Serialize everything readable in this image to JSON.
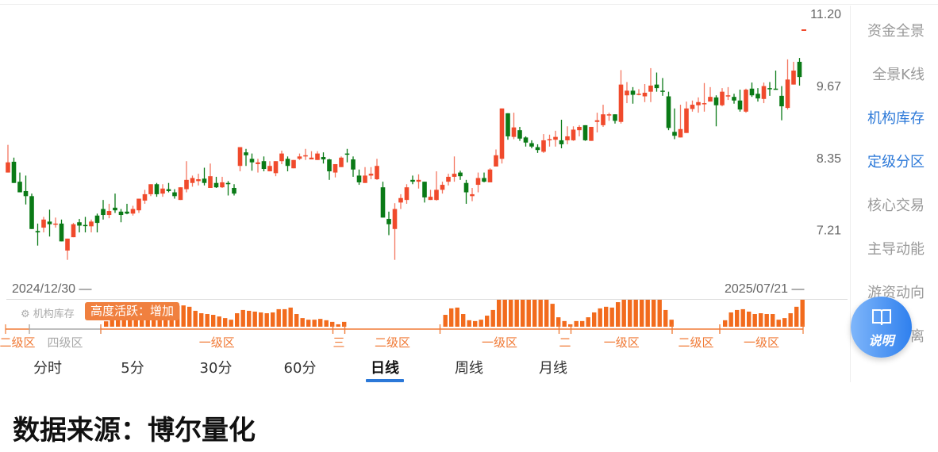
{
  "chart_data": {
    "type": "candlestick",
    "scale": "log",
    "ylim": [
      6.54,
      11.2
    ],
    "yticks": [
      "11.20",
      "9.67",
      "8.35",
      "7.21"
    ],
    "ytick_values": [
      11.2,
      9.67,
      8.35,
      7.21
    ],
    "start_date": "2024/12/30 —",
    "end_date": "2025/07/21 —",
    "colors": {
      "up": "#f04a2c",
      "down": "#0a7a16",
      "activity": "#f26b1d",
      "zone_line": "#f07a36",
      "zone_gray": "#aaaaaa"
    },
    "candles_ohlc": [
      [
        8.1,
        8.57,
        8.1,
        8.27
      ],
      [
        8.28,
        8.35,
        7.93,
        7.93
      ],
      [
        7.95,
        8.1,
        7.78,
        7.78
      ],
      [
        7.8,
        8.05,
        7.59,
        7.72
      ],
      [
        7.72,
        7.76,
        7.22,
        7.22
      ],
      [
        7.19,
        7.3,
        6.98,
        7.17
      ],
      [
        7.24,
        7.4,
        7.17,
        7.36
      ],
      [
        7.33,
        7.51,
        7.11,
        7.29
      ],
      [
        7.29,
        7.39,
        7.24,
        7.3
      ],
      [
        7.3,
        7.36,
        7.04,
        7.04
      ],
      [
        6.91,
        7.08,
        6.78,
        7.08
      ],
      [
        7.1,
        7.31,
        7.1,
        7.29
      ],
      [
        7.32,
        7.37,
        7.17,
        7.27
      ],
      [
        7.28,
        7.4,
        7.17,
        7.27
      ],
      [
        7.26,
        7.36,
        7.17,
        7.33
      ],
      [
        7.42,
        7.45,
        7.17,
        7.31
      ],
      [
        7.52,
        7.66,
        7.36,
        7.43
      ],
      [
        7.43,
        7.6,
        7.38,
        7.49
      ],
      [
        7.54,
        7.76,
        7.46,
        7.5
      ],
      [
        7.48,
        7.52,
        7.32,
        7.43
      ],
      [
        7.48,
        7.6,
        7.44,
        7.45
      ],
      [
        7.45,
        7.57,
        7.42,
        7.52
      ],
      [
        7.5,
        7.68,
        7.46,
        7.68
      ],
      [
        7.65,
        7.82,
        7.6,
        7.75
      ],
      [
        7.75,
        7.91,
        7.72,
        7.91
      ],
      [
        7.91,
        7.93,
        7.71,
        7.75
      ],
      [
        7.76,
        7.91,
        7.71,
        7.84
      ],
      [
        7.83,
        7.93,
        7.78,
        7.8
      ],
      [
        7.78,
        7.83,
        7.68,
        7.72
      ],
      [
        7.66,
        7.86,
        7.66,
        7.86
      ],
      [
        7.83,
        8.29,
        7.78,
        7.98
      ],
      [
        7.93,
        8.05,
        7.87,
        8.01
      ],
      [
        7.96,
        8.08,
        7.89,
        7.99
      ],
      [
        8.0,
        8.18,
        7.89,
        7.93
      ],
      [
        7.85,
        8.25,
        7.85,
        8.04
      ],
      [
        7.93,
        8.03,
        7.85,
        7.86
      ],
      [
        7.86,
        8.03,
        7.85,
        7.94
      ],
      [
        7.93,
        7.96,
        7.73,
        7.91
      ],
      [
        7.85,
        7.91,
        7.73,
        7.76
      ],
      [
        8.21,
        8.53,
        8.12,
        8.53
      ],
      [
        8.44,
        8.5,
        8.21,
        8.39
      ],
      [
        8.33,
        8.42,
        8.13,
        8.27
      ],
      [
        8.24,
        8.33,
        8.1,
        8.27
      ],
      [
        8.29,
        8.37,
        8.12,
        8.16
      ],
      [
        8.12,
        8.29,
        8.12,
        8.21
      ],
      [
        8.09,
        8.29,
        8.04,
        8.29
      ],
      [
        8.29,
        8.47,
        8.24,
        8.42
      ],
      [
        8.33,
        8.37,
        8.12,
        8.21
      ],
      [
        8.17,
        8.31,
        8.17,
        8.31
      ],
      [
        8.33,
        8.42,
        8.31,
        8.37
      ],
      [
        8.37,
        8.5,
        8.31,
        8.39
      ],
      [
        8.32,
        8.46,
        8.32,
        8.35
      ],
      [
        8.31,
        8.46,
        8.31,
        8.42
      ],
      [
        8.36,
        8.44,
        8.25,
        8.32
      ],
      [
        8.32,
        8.33,
        7.98,
        8.12
      ],
      [
        8.1,
        8.24,
        8.02,
        8.24
      ],
      [
        8.19,
        8.37,
        8.19,
        8.35
      ],
      [
        8.42,
        8.5,
        8.27,
        8.4
      ],
      [
        8.32,
        8.37,
        8.03,
        8.15
      ],
      [
        8.05,
        8.15,
        7.9,
        7.94
      ],
      [
        7.93,
        8.19,
        7.93,
        8.05
      ],
      [
        8.05,
        8.19,
        7.99,
        8.08
      ],
      [
        7.99,
        8.33,
        7.98,
        8.21
      ],
      [
        7.86,
        7.95,
        7.39,
        7.39
      ],
      [
        7.37,
        7.48,
        7.13,
        7.29
      ],
      [
        7.22,
        7.61,
        6.78,
        7.52
      ],
      [
        7.62,
        7.75,
        7.52,
        7.69
      ],
      [
        7.66,
        7.91,
        7.6,
        7.86
      ],
      [
        7.98,
        8.05,
        7.91,
        7.95
      ],
      [
        7.95,
        8.07,
        7.84,
        7.98
      ],
      [
        7.95,
        7.95,
        7.62,
        7.7
      ],
      [
        7.66,
        7.82,
        7.66,
        7.71
      ],
      [
        7.66,
        8.12,
        7.65,
        7.82
      ],
      [
        7.82,
        7.95,
        7.76,
        7.9
      ],
      [
        7.95,
        8.08,
        7.89,
        8.03
      ],
      [
        8.03,
        8.37,
        7.95,
        8.08
      ],
      [
        8.1,
        8.13,
        7.98,
        8.04
      ],
      [
        7.93,
        7.98,
        7.6,
        7.78
      ],
      [
        7.72,
        7.85,
        7.64,
        7.75
      ],
      [
        7.9,
        8.1,
        7.78,
        8.01
      ],
      [
        8.01,
        8.1,
        7.94,
        7.95
      ],
      [
        7.94,
        8.17,
        7.94,
        8.15
      ],
      [
        8.2,
        8.49,
        8.2,
        8.39
      ],
      [
        8.33,
        9.23,
        8.25,
        9.23
      ],
      [
        9.14,
        9.14,
        8.66,
        8.72
      ],
      [
        8.71,
        9.15,
        8.67,
        8.88
      ],
      [
        8.83,
        8.89,
        8.64,
        8.68
      ],
      [
        8.7,
        8.72,
        8.54,
        8.61
      ],
      [
        8.6,
        8.65,
        8.51,
        8.54
      ],
      [
        8.53,
        8.58,
        8.43,
        8.48
      ],
      [
        8.45,
        8.76,
        8.43,
        8.65
      ],
      [
        8.65,
        8.75,
        8.54,
        8.67
      ],
      [
        8.66,
        8.82,
        8.54,
        8.71
      ],
      [
        8.65,
        9.02,
        8.51,
        8.58
      ],
      [
        8.65,
        8.9,
        8.58,
        8.72
      ],
      [
        8.65,
        8.9,
        8.64,
        8.84
      ],
      [
        8.83,
        8.92,
        8.72,
        8.89
      ],
      [
        8.92,
        8.92,
        8.64,
        8.65
      ],
      [
        8.64,
        8.89,
        8.64,
        8.89
      ],
      [
        8.98,
        9.15,
        8.79,
        9.01
      ],
      [
        8.92,
        9.3,
        8.89,
        9.12
      ],
      [
        9.11,
        9.15,
        9.0,
        9.12
      ],
      [
        9.12,
        9.12,
        8.95,
        9.0
      ],
      [
        8.98,
        9.98,
        8.95,
        9.69
      ],
      [
        9.48,
        9.74,
        9.33,
        9.57
      ],
      [
        9.57,
        9.64,
        9.32,
        9.49
      ],
      [
        9.49,
        9.6,
        9.48,
        9.51
      ],
      [
        9.46,
        9.7,
        9.35,
        9.53
      ],
      [
        9.55,
        10.02,
        9.35,
        9.67
      ],
      [
        9.69,
        9.93,
        9.55,
        9.62
      ],
      [
        9.57,
        9.82,
        9.47,
        9.56
      ],
      [
        9.46,
        9.55,
        8.83,
        8.87
      ],
      [
        8.8,
        9.23,
        8.67,
        8.73
      ],
      [
        8.7,
        9.3,
        8.7,
        8.85
      ],
      [
        8.78,
        9.36,
        8.78,
        9.23
      ],
      [
        9.22,
        9.38,
        9.17,
        9.3
      ],
      [
        9.29,
        9.44,
        9.15,
        9.35
      ],
      [
        9.32,
        9.72,
        9.17,
        9.33
      ],
      [
        9.36,
        9.64,
        9.36,
        9.45
      ],
      [
        9.44,
        9.48,
        8.9,
        9.29
      ],
      [
        9.29,
        9.62,
        9.27,
        9.55
      ],
      [
        9.47,
        9.64,
        9.39,
        9.48
      ],
      [
        9.45,
        9.51,
        9.32,
        9.38
      ],
      [
        9.38,
        9.59,
        9.17,
        9.21
      ],
      [
        9.17,
        9.61,
        9.15,
        9.59
      ],
      [
        9.61,
        9.73,
        9.45,
        9.48
      ],
      [
        9.51,
        9.62,
        9.36,
        9.42
      ],
      [
        9.41,
        9.73,
        9.33,
        9.66
      ],
      [
        9.62,
        9.74,
        9.47,
        9.61
      ],
      [
        9.61,
        9.97,
        9.59,
        9.59
      ],
      [
        9.47,
        9.66,
        9.01,
        9.27
      ],
      [
        9.24,
        10.2,
        9.21,
        9.79
      ],
      [
        9.69,
        10.15,
        9.69,
        9.97
      ],
      [
        10.15,
        10.23,
        9.67,
        9.84
      ]
    ],
    "activity_percent": [
      null,
      null,
      null,
      null,
      null,
      null,
      null,
      null,
      null,
      null,
      null,
      null,
      null,
      null,
      null,
      null,
      20,
      30,
      35,
      40,
      45,
      50,
      55,
      60,
      65,
      70,
      72,
      75,
      78,
      79,
      74,
      59,
      50,
      47,
      44,
      38,
      32,
      26,
      50,
      62,
      59,
      56,
      53,
      50,
      53,
      65,
      65,
      71,
      47,
      32,
      26,
      26,
      29,
      24,
      18,
      9,
      18,
      null,
      null,
      null,
      null,
      null,
      null,
      null,
      null,
      null,
      null,
      null,
      null,
      null,
      null,
      null,
      null,
      44,
      68,
      71,
      47,
      24,
      21,
      26,
      41,
      62,
      100,
      100,
      100,
      100,
      100,
      100,
      100,
      100,
      100,
      85,
      35,
      21,
      9,
      21,
      21,
      35,
      53,
      68,
      74,
      71,
      91,
      100,
      100,
      100,
      100,
      100,
      100,
      100,
      62,
      26,
      null,
      null,
      null,
      null,
      null,
      null,
      null,
      null,
      24,
      53,
      62,
      65,
      56,
      47,
      50,
      47,
      47,
      26,
      32,
      50,
      74,
      100
    ],
    "zones": [
      {
        "label": "二级区",
        "start": 0,
        "end": 4,
        "color": "#f07a36"
      },
      {
        "label": "四级区",
        "start": 4,
        "end": 16,
        "color": "#aaaaaa"
      },
      {
        "label": "一级区",
        "start": 16,
        "end": 55,
        "color": "#f07a36"
      },
      {
        "label": "三",
        "start": 55,
        "end": 57,
        "color": "#f07a36"
      },
      {
        "label": "二级区",
        "start": 57,
        "end": 73,
        "color": "#f07a36"
      },
      {
        "label": "一级区",
        "start": 73,
        "end": 93,
        "color": "#f07a36"
      },
      {
        "label": "二",
        "start": 93,
        "end": 95,
        "color": "#f07a36"
      },
      {
        "label": "一级区",
        "start": 95,
        "end": 112,
        "color": "#f07a36"
      },
      {
        "label": "二级区",
        "start": 112,
        "end": 120,
        "color": "#f07a36"
      },
      {
        "label": "一级区",
        "start": 120,
        "end": 134,
        "color": "#f07a36"
      }
    ]
  },
  "indicator": {
    "label": "⚙ 机构库存",
    "tooltip": "高度活跃：增加"
  },
  "sidebar": {
    "items": [
      {
        "label": "资金全景",
        "active": false
      },
      {
        "label": "全景K线",
        "active": false
      },
      {
        "label": "机构库存",
        "active": true
      },
      {
        "label": "定级分区",
        "active": true
      },
      {
        "label": "核心交易",
        "active": false
      },
      {
        "label": "主导动能",
        "active": false
      },
      {
        "label": "游资动向",
        "active": false
      },
      {
        "label": "离",
        "active": false
      }
    ],
    "help_button": {
      "label": "说明",
      "icon": "book-icon"
    }
  },
  "tabs": [
    {
      "label": "分时"
    },
    {
      "label": "5分"
    },
    {
      "label": "30分"
    },
    {
      "label": "60分"
    },
    {
      "label": "日线",
      "active": true
    },
    {
      "label": "周线"
    },
    {
      "label": "月线"
    }
  ],
  "footer": {
    "text": "数据来源：博尔量化"
  }
}
